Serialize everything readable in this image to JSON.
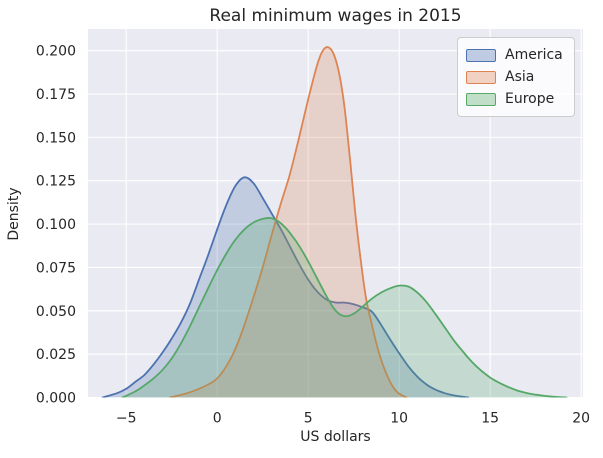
{
  "chart_data": {
    "type": "area",
    "subtype": "kde-density",
    "title": "Real minimum wages in 2015",
    "xlabel": "US dollars",
    "ylabel": "Density",
    "xlim": [
      -7.1,
      20.1
    ],
    "ylim": [
      0,
      0.2125
    ],
    "grid": true,
    "background_color": "#eaeaf2",
    "grid_color": "#ffffff",
    "text_color": "#262626",
    "fill_opacity": 0.25,
    "x_ticks": [
      -5,
      0,
      5,
      10,
      15,
      20
    ],
    "x_tick_labels": [
      "−5",
      "0",
      "5",
      "10",
      "15",
      "20"
    ],
    "y_ticks": [
      0,
      0.025,
      0.05,
      0.075,
      0.1,
      0.125,
      0.15,
      0.175,
      0.2
    ],
    "y_tick_labels": [
      "0.000",
      "0.025",
      "0.050",
      "0.075",
      "0.100",
      "0.125",
      "0.150",
      "0.175",
      "0.200"
    ],
    "legend": {
      "position": "upper right",
      "border_color": "#cccccc",
      "background_color": "rgba(255,255,255,0.8)",
      "entries": [
        "America",
        "Asia",
        "Europe"
      ]
    },
    "series": [
      {
        "name": "America",
        "color": "#4C72B0",
        "peak": {
          "x": 1.5,
          "density": 0.127
        },
        "points": [
          [
            -6.3,
            0
          ],
          [
            -5.5,
            0.0025
          ],
          [
            -5,
            0.005
          ],
          [
            -4.5,
            0.009
          ],
          [
            -4,
            0.013
          ],
          [
            -3.5,
            0.019
          ],
          [
            -3,
            0.026
          ],
          [
            -2.5,
            0.034
          ],
          [
            -2,
            0.043
          ],
          [
            -1.5,
            0.054
          ],
          [
            -1,
            0.068
          ],
          [
            -0.5,
            0.082
          ],
          [
            0,
            0.097
          ],
          [
            0.5,
            0.111
          ],
          [
            1,
            0.122
          ],
          [
            1.5,
            0.127
          ],
          [
            2,
            0.1235
          ],
          [
            2.5,
            0.115
          ],
          [
            3,
            0.106
          ],
          [
            3.5,
            0.097
          ],
          [
            4,
            0.087
          ],
          [
            4.5,
            0.077
          ],
          [
            5,
            0.068
          ],
          [
            5.5,
            0.061
          ],
          [
            6,
            0.0565
          ],
          [
            6.5,
            0.0548
          ],
          [
            7,
            0.0547
          ],
          [
            7.5,
            0.0538
          ],
          [
            8,
            0.052
          ],
          [
            8.5,
            0.0495
          ],
          [
            9,
            0.042
          ],
          [
            9.5,
            0.0335
          ],
          [
            10,
            0.0255
          ],
          [
            10.5,
            0.018
          ],
          [
            11,
            0.012
          ],
          [
            11.5,
            0.0075
          ],
          [
            12,
            0.0045
          ],
          [
            12.5,
            0.0025
          ],
          [
            13,
            0.0012
          ],
          [
            13.8,
            0
          ]
        ]
      },
      {
        "name": "Asia",
        "color": "#DD8452",
        "peak": {
          "x": 6.1,
          "density": 0.202
        },
        "points": [
          [
            -2.6,
            0
          ],
          [
            -2,
            0.0015
          ],
          [
            -1.5,
            0.003
          ],
          [
            -1,
            0.005
          ],
          [
            -0.5,
            0.0075
          ],
          [
            0,
            0.011
          ],
          [
            0.5,
            0.018
          ],
          [
            1,
            0.028
          ],
          [
            1.5,
            0.042
          ],
          [
            2,
            0.058
          ],
          [
            2.5,
            0.075
          ],
          [
            3,
            0.094
          ],
          [
            3.5,
            0.112
          ],
          [
            4,
            0.129
          ],
          [
            4.5,
            0.15
          ],
          [
            5,
            0.172
          ],
          [
            5.5,
            0.192
          ],
          [
            5.8,
            0.2
          ],
          [
            6.1,
            0.202
          ],
          [
            6.4,
            0.198
          ],
          [
            6.7,
            0.187
          ],
          [
            7,
            0.167
          ],
          [
            7.3,
            0.137
          ],
          [
            7.6,
            0.105
          ],
          [
            7.9,
            0.078
          ],
          [
            8.2,
            0.056
          ],
          [
            8.5,
            0.042
          ],
          [
            8.8,
            0.029
          ],
          [
            9.1,
            0.019
          ],
          [
            9.5,
            0.009
          ],
          [
            9.9,
            0.003
          ],
          [
            10.4,
            0
          ]
        ]
      },
      {
        "name": "Europe",
        "color": "#55A868",
        "peak": {
          "x": 2.9,
          "density": 0.1035
        },
        "points": [
          [
            -5.2,
            0
          ],
          [
            -4.5,
            0.0035
          ],
          [
            -4,
            0.007
          ],
          [
            -3.5,
            0.011
          ],
          [
            -3,
            0.016
          ],
          [
            -2.5,
            0.0225
          ],
          [
            -2,
            0.031
          ],
          [
            -1.5,
            0.041
          ],
          [
            -1,
            0.052
          ],
          [
            -0.5,
            0.063
          ],
          [
            0,
            0.0735
          ],
          [
            0.5,
            0.083
          ],
          [
            1,
            0.091
          ],
          [
            1.5,
            0.097
          ],
          [
            2,
            0.101
          ],
          [
            2.5,
            0.103
          ],
          [
            2.9,
            0.1035
          ],
          [
            3.3,
            0.102
          ],
          [
            3.7,
            0.0985
          ],
          [
            4.1,
            0.0935
          ],
          [
            4.5,
            0.0875
          ],
          [
            5,
            0.0785
          ],
          [
            5.5,
            0.0685
          ],
          [
            6,
            0.0585
          ],
          [
            6.4,
            0.0515
          ],
          [
            6.8,
            0.0475
          ],
          [
            7.2,
            0.047
          ],
          [
            7.6,
            0.049
          ],
          [
            8,
            0.0525
          ],
          [
            8.5,
            0.057
          ],
          [
            9,
            0.0605
          ],
          [
            9.5,
            0.063
          ],
          [
            10,
            0.0645
          ],
          [
            10.5,
            0.064
          ],
          [
            11,
            0.0605
          ],
          [
            11.5,
            0.055
          ],
          [
            12,
            0.048
          ],
          [
            12.5,
            0.0405
          ],
          [
            13,
            0.033
          ],
          [
            13.5,
            0.0265
          ],
          [
            14,
            0.0205
          ],
          [
            14.5,
            0.0155
          ],
          [
            15,
            0.0115
          ],
          [
            15.5,
            0.0085
          ],
          [
            16,
            0.006
          ],
          [
            16.5,
            0.004
          ],
          [
            17,
            0.0026
          ],
          [
            17.5,
            0.0016
          ],
          [
            18,
            0.0009
          ],
          [
            18.5,
            0.0004
          ],
          [
            19.2,
            0
          ]
        ]
      }
    ]
  }
}
